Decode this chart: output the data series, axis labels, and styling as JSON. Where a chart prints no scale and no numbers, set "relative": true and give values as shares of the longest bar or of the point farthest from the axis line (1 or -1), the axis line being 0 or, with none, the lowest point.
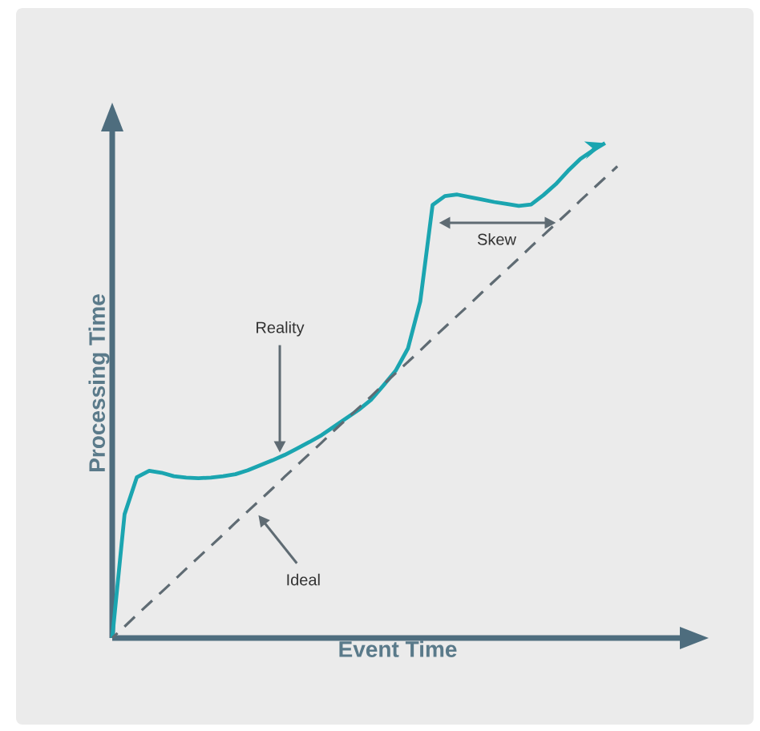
{
  "chart_data": {
    "type": "line",
    "relative": true,
    "xlabel": "Event Time",
    "ylabel": "Processing Time",
    "categories": [
      null,
      null,
      null,
      null,
      null,
      null,
      null,
      null,
      null,
      null,
      null,
      null,
      null,
      null,
      null,
      null,
      null,
      null,
      null,
      null,
      null,
      null,
      null,
      null,
      null,
      null,
      null,
      null,
      null,
      null,
      null,
      null,
      null,
      null,
      null,
      null,
      null,
      null,
      null,
      null,
      null,
      null
    ],
    "series": [
      {
        "color": "#1ba5b0",
        "line_style": "solid",
        "values": [
          0.0,
          0.25,
          0.325,
          0.338,
          0.334,
          0.327,
          0.324,
          0.323,
          0.324,
          0.327,
          0.331,
          0.339,
          0.349,
          0.359,
          0.37,
          0.383,
          0.396,
          0.41,
          0.427,
          0.444,
          0.461,
          0.481,
          0.51,
          0.54,
          0.585,
          0.68,
          0.875,
          0.893,
          0.896,
          0.891,
          0.886,
          0.881,
          0.877,
          0.873,
          0.876,
          0.895,
          0.917,
          0.944,
          0.968,
          0.985,
          1.0,
          null
        ]
      },
      {
        "color": "#5f6b73",
        "line_style": "dashed",
        "values": [
          0.0,
          0.023,
          0.047,
          0.07,
          0.093,
          0.116,
          0.14,
          0.163,
          0.186,
          0.209,
          0.233,
          0.256,
          0.279,
          0.302,
          0.326,
          0.349,
          0.372,
          0.395,
          0.419,
          0.442,
          0.465,
          0.488,
          0.512,
          0.535,
          0.558,
          0.581,
          0.605,
          0.628,
          0.651,
          0.674,
          0.698,
          0.721,
          0.744,
          0.767,
          0.791,
          0.814,
          0.837,
          0.86,
          0.884,
          0.907,
          0.93,
          0.953
        ]
      }
    ],
    "annotations": [
      "Reality",
      "Ideal",
      "Skew"
    ]
  }
}
